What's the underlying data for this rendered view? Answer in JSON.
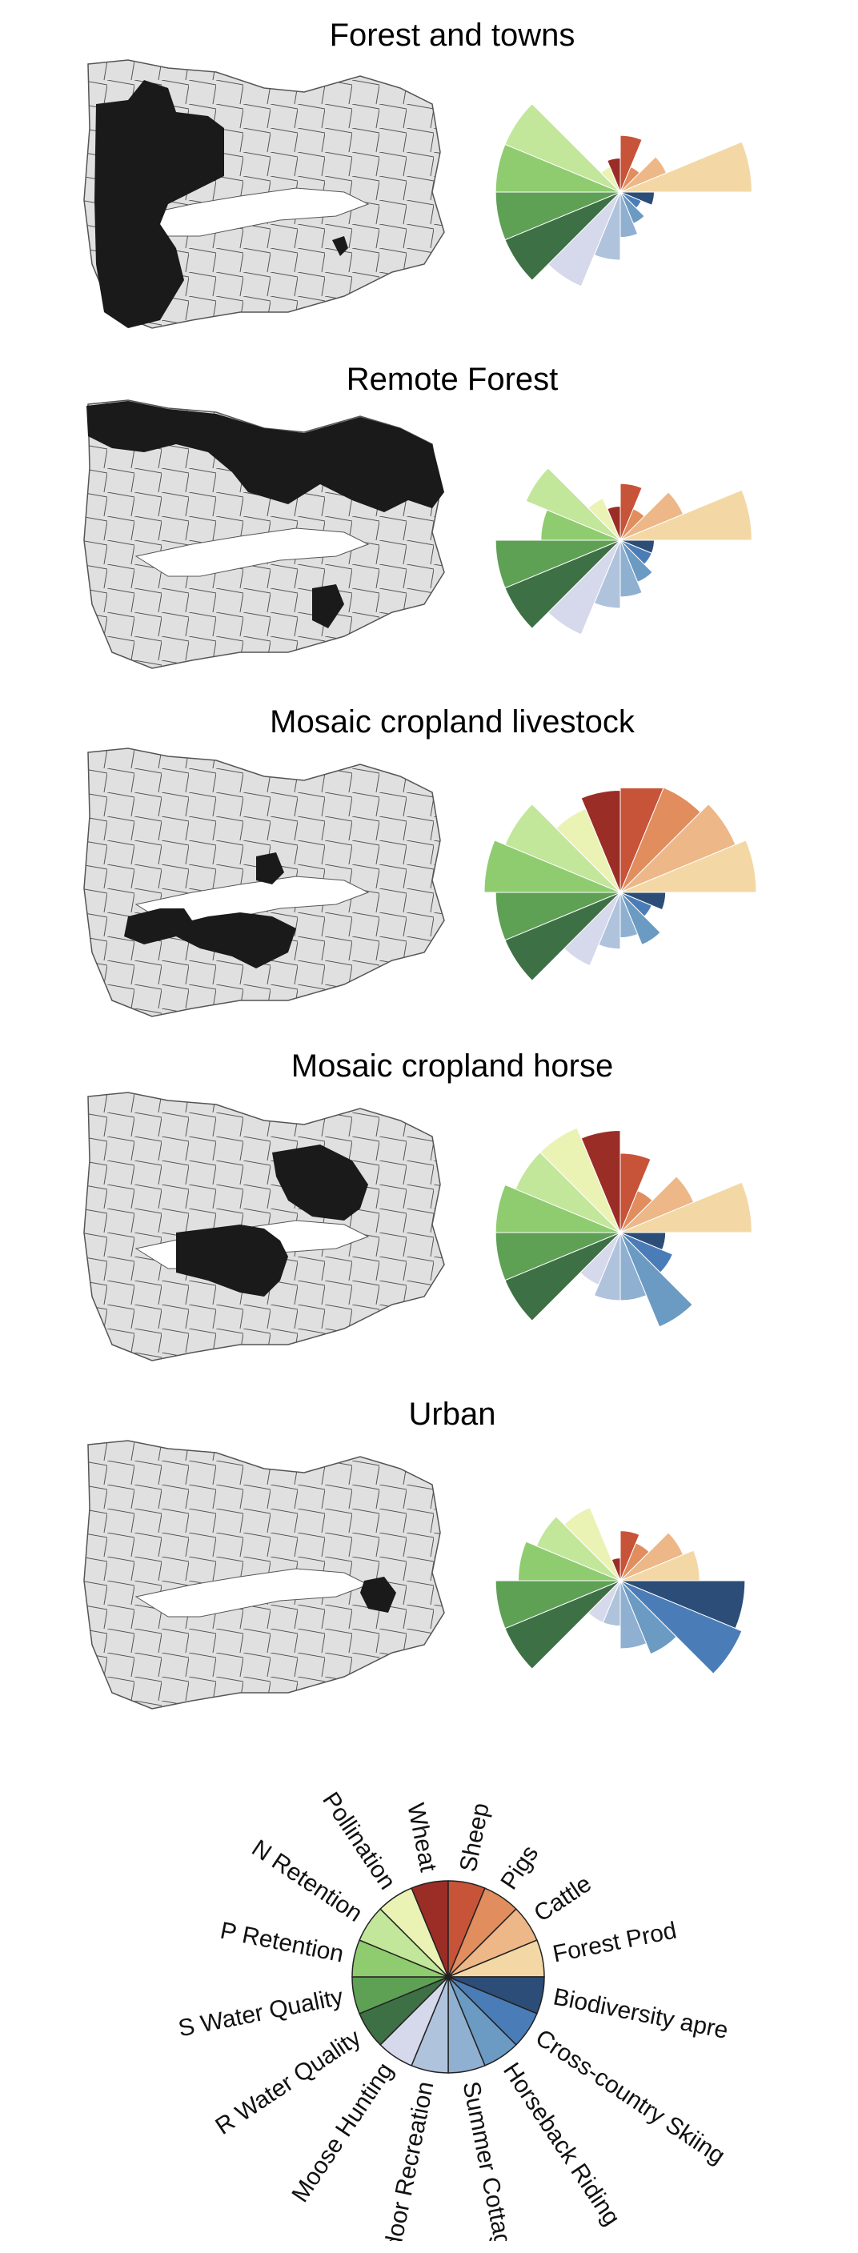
{
  "chart_data": [
    {
      "type": "polar-bar",
      "title": "Forest and towns",
      "categories": [
        "Wheat",
        "Sheep",
        "Pigs",
        "Cattle",
        "Forest Prod",
        "Biodiversity apre",
        "Cross-country Skiing",
        "Horseback Riding",
        "Summer Cottages",
        "Outdoor Recreation",
        "Moose Hunting",
        "R Water Quality",
        "S Water Quality",
        "P Retention",
        "N Retention",
        "Pollination"
      ],
      "values": [
        0.15,
        0.25,
        0.12,
        0.22,
        0.58,
        0.15,
        0.1,
        0.15,
        0.2,
        0.3,
        0.45,
        0.55,
        0.55,
        0.55,
        0.55,
        0.12
      ]
    },
    {
      "type": "polar-bar",
      "title": "Remote Forest",
      "categories": [
        "Wheat",
        "Sheep",
        "Pigs",
        "Cattle",
        "Forest Prod",
        "Biodiversity apre",
        "Cross-country Skiing",
        "Horseback Riding",
        "Summer Cottages",
        "Outdoor Recreation",
        "Moose Hunting",
        "R Water Quality",
        "S Water Quality",
        "P Retention",
        "N Retention",
        "Pollination"
      ],
      "values": [
        0.15,
        0.25,
        0.15,
        0.3,
        0.58,
        0.15,
        0.15,
        0.2,
        0.25,
        0.3,
        0.45,
        0.55,
        0.55,
        0.35,
        0.45,
        0.2
      ]
    },
    {
      "type": "polar-bar",
      "title": "Mosaic cropland livestock",
      "categories": [
        "Wheat",
        "Sheep",
        "Pigs",
        "Cattle",
        "Forest Prod",
        "Biodiversity apre",
        "Cross-country Skiing",
        "Horseback Riding",
        "Summer Cottages",
        "Outdoor Recreation",
        "Moose Hunting",
        "R Water Quality",
        "S Water Quality",
        "P Retention",
        "N Retention",
        "Pollination"
      ],
      "values": [
        0.45,
        0.5,
        0.5,
        0.55,
        0.6,
        0.2,
        0.15,
        0.25,
        0.2,
        0.25,
        0.35,
        0.55,
        0.55,
        0.6,
        0.55,
        0.4
      ]
    },
    {
      "type": "polar-bar",
      "title": "Mosaic cropland horse",
      "categories": [
        "Wheat",
        "Sheep",
        "Pigs",
        "Cattle",
        "Forest Prod",
        "Biodiversity apre",
        "Cross-country Skiing",
        "Horseback Riding",
        "Summer Cottages",
        "Outdoor Recreation",
        "Moose Hunting",
        "R Water Quality",
        "S Water Quality",
        "P Retention",
        "N Retention",
        "Pollination"
      ],
      "values": [
        0.45,
        0.35,
        0.2,
        0.35,
        0.58,
        0.2,
        0.25,
        0.45,
        0.3,
        0.3,
        0.25,
        0.55,
        0.55,
        0.55,
        0.5,
        0.5
      ]
    },
    {
      "type": "polar-bar",
      "title": "Urban",
      "categories": [
        "Wheat",
        "Sheep",
        "Pigs",
        "Cattle",
        "Forest Prod",
        "Biodiversity apre",
        "Cross-country Skiing",
        "Horseback Riding",
        "Summer Cottages",
        "Outdoor Recreation",
        "Moose Hunting",
        "R Water Quality",
        "S Water Quality",
        "P Retention",
        "N Retention",
        "Pollination"
      ],
      "values": [
        0.1,
        0.22,
        0.18,
        0.3,
        0.35,
        0.55,
        0.58,
        0.35,
        0.3,
        0.2,
        0.2,
        0.55,
        0.55,
        0.45,
        0.4,
        0.35
      ]
    }
  ],
  "colors": [
    "#9b2d27",
    "#c75339",
    "#e18d5d",
    "#edb787",
    "#f3d8a5",
    "#2c4d77",
    "#4a7db8",
    "#6b9ac2",
    "#8fb0d1",
    "#b0c3dc",
    "#d6d8eb",
    "#3e7045",
    "#5ea155",
    "#8fcc6f",
    "#c2e69a",
    "#eaf3b4"
  ],
  "legend": {
    "labels": [
      "Wheat",
      "Sheep",
      "Pigs",
      "Cattle",
      "Forest Prod",
      "Biodiversity apre",
      "Cross-country Skiing",
      "Horseback Riding",
      "Summer Cottages",
      "Outdoor Recreation",
      "Moose Hunting",
      "R Water Quality",
      "S Water Quality",
      "P Retention",
      "N Retention",
      "Pollination"
    ]
  }
}
